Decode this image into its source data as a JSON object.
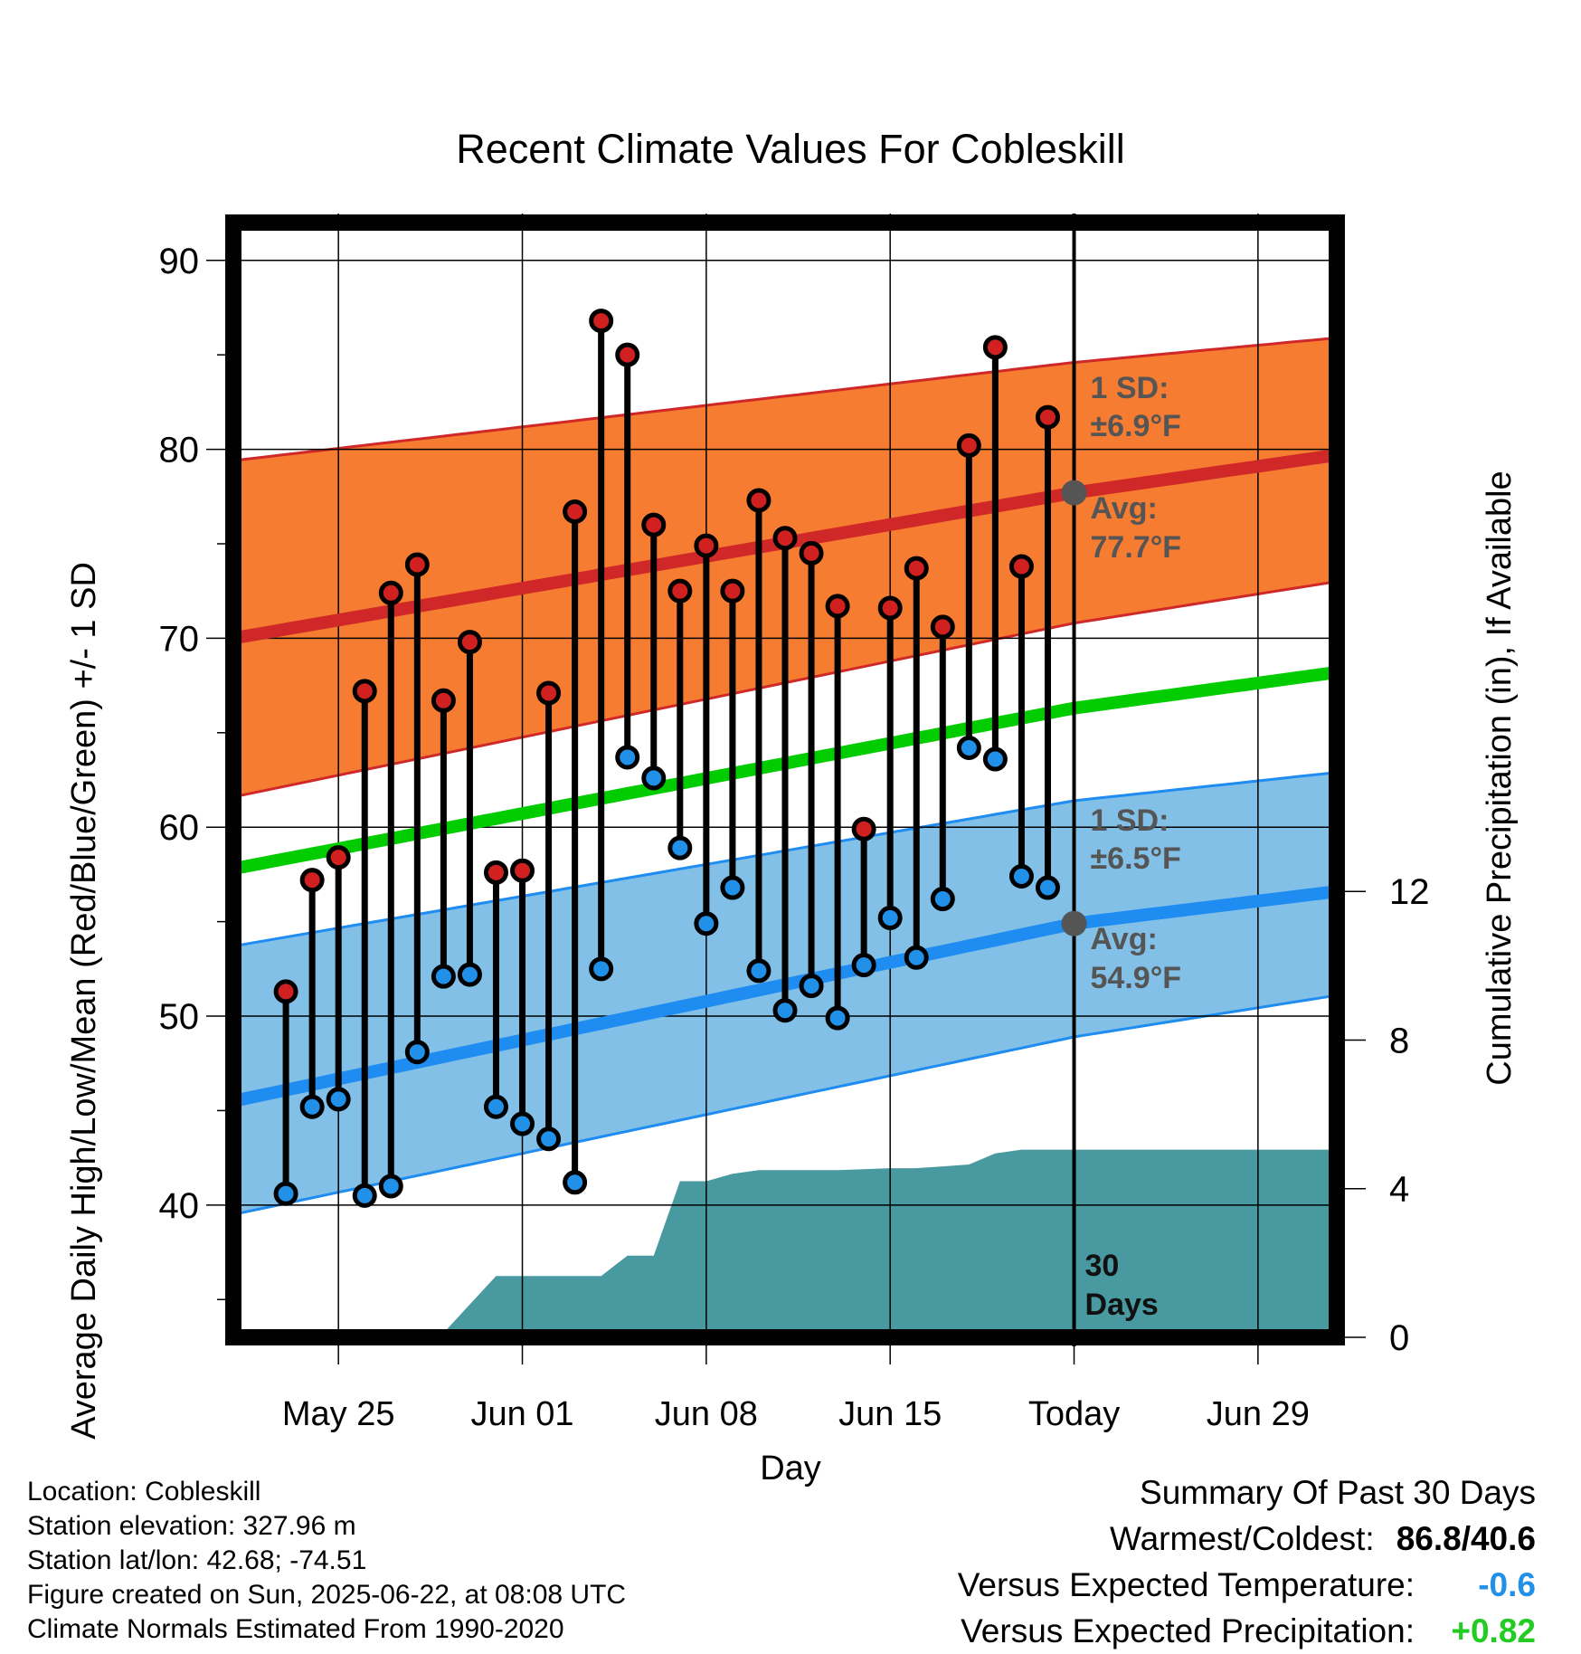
{
  "title": "Recent Climate Values For Cobleskill",
  "chart_data": {
    "type": "line",
    "title": "Recent Climate Values For Cobleskill",
    "xlabel": "Day",
    "ylabel": "Average Daily High/Low/Mean (Red/Blue/Green) +/- 1 SD",
    "ylabel_right": "Cumulative Precipitation (in), If Available",
    "ylim": [
      33,
      92
    ],
    "ylim_right": [
      0,
      30
    ],
    "x_tick_labels": [
      "May 25",
      "Jun 01",
      "Jun 08",
      "Jun 15",
      "Today",
      "Jun 29"
    ],
    "x_tick_dates": [
      "May 25",
      "Jun 01",
      "Jun 08",
      "Jun 15",
      "Jun 22",
      "Jun 29"
    ],
    "x_range": [
      "May 21",
      "Jul 02"
    ],
    "y_ticks": [
      40,
      50,
      60,
      70,
      80,
      90
    ],
    "y_right_ticks": [
      0,
      4,
      8,
      12
    ],
    "grid": true,
    "dates": [
      "May 23",
      "May 24",
      "May 25",
      "May 26",
      "May 27",
      "May 28",
      "May 29",
      "May 30",
      "May 31",
      "Jun 01",
      "Jun 02",
      "Jun 03",
      "Jun 04",
      "Jun 05",
      "Jun 06",
      "Jun 07",
      "Jun 08",
      "Jun 09",
      "Jun 10",
      "Jun 11",
      "Jun 12",
      "Jun 13",
      "Jun 14",
      "Jun 15",
      "Jun 16",
      "Jun 17",
      "Jun 18",
      "Jun 19",
      "Jun 20",
      "Jun 21"
    ],
    "series": [
      {
        "name": "High",
        "color": "#d02020",
        "values": [
          51.3,
          57.2,
          58.4,
          67.2,
          72.4,
          73.9,
          66.7,
          69.8,
          57.6,
          57.7,
          67.1,
          76.7,
          86.8,
          85.0,
          76.0,
          72.5,
          74.9,
          72.5,
          77.3,
          75.3,
          74.5,
          71.7,
          59.9,
          71.6,
          73.7,
          70.6,
          80.2,
          85.4,
          73.8,
          81.7
        ]
      },
      {
        "name": "Low",
        "color": "#2090e8",
        "values": [
          40.6,
          45.2,
          45.6,
          40.5,
          41.0,
          48.1,
          52.1,
          52.2,
          45.2,
          44.3,
          43.5,
          41.2,
          52.5,
          63.7,
          62.6,
          58.9,
          54.9,
          56.8,
          52.4,
          50.3,
          51.6,
          49.9,
          52.7,
          55.2,
          53.1,
          56.2,
          64.2,
          63.6,
          57.4,
          56.8
        ]
      }
    ],
    "normals": {
      "x": [
        "May 21",
        "Jun 22",
        "Jul 02"
      ],
      "high_avg": [
        70.0,
        77.7,
        79.7
      ],
      "high_upper": [
        79.4,
        84.6,
        85.9
      ],
      "high_lower": [
        61.6,
        70.8,
        73.0
      ],
      "mean_avg": [
        57.8,
        66.3,
        68.2
      ],
      "low_avg": [
        45.5,
        54.9,
        56.6
      ],
      "low_upper": [
        53.7,
        61.4,
        62.9
      ],
      "low_lower": [
        39.5,
        48.9,
        51.1
      ]
    },
    "precip_cumulative": {
      "dates": [
        "May 22",
        "May 23",
        "May 29",
        "May 31",
        "Jun 01",
        "Jun 04",
        "Jun 05",
        "Jun 06",
        "Jun 07",
        "Jun 08",
        "Jun 09",
        "Jun 10",
        "Jun 13",
        "Jun 15",
        "Jun 16",
        "Jun 17",
        "Jun 18",
        "Jun 19",
        "Jun 20",
        "Jul 02"
      ],
      "values": [
        0.05,
        0.07,
        0.12,
        1.65,
        1.65,
        1.65,
        2.2,
        2.2,
        4.2,
        4.2,
        4.4,
        4.5,
        4.5,
        4.55,
        4.55,
        4.6,
        4.65,
        4.95,
        5.05,
        5.05
      ]
    },
    "annotations": {
      "high_sd_label": "1 SD:",
      "high_sd_value": "±6.9°F",
      "high_avg_label": "Avg:",
      "high_avg_value": "77.7°F",
      "low_sd_label": "1 SD:",
      "low_sd_value": "±6.5°F",
      "low_avg_label": "Avg:",
      "low_avg_value": "54.9°F",
      "days_line1": "30",
      "days_line2": "Days"
    },
    "colors": {
      "high_band": "#f57c30",
      "high_line": "#d02828",
      "low_band": "#82c0e8",
      "low_line": "#1e8cf0",
      "mean_line": "#00cc00",
      "precip": "#4899a0",
      "annotation": "#555555"
    }
  },
  "footer": {
    "location": "Location: Cobleskill",
    "elevation": "Station elevation: 327.96 m",
    "latlon": "Station lat/lon: 42.68; -74.51",
    "created": "Figure created on Sun, 2025-06-22, at 08:08 UTC",
    "normals": "Climate Normals Estimated From 1990-2020"
  },
  "summary": {
    "heading": "Summary Of Past 30 Days",
    "warm_cold_label": "Warmest/Coldest:",
    "warm_cold_value": "86.8/40.6",
    "temp_label": "Versus Expected Temperature:",
    "temp_value": "-0.6",
    "temp_color": "#2090e8",
    "precip_label": "Versus Expected Precipitation:",
    "precip_value": "+0.82",
    "precip_color": "#22cc22"
  }
}
